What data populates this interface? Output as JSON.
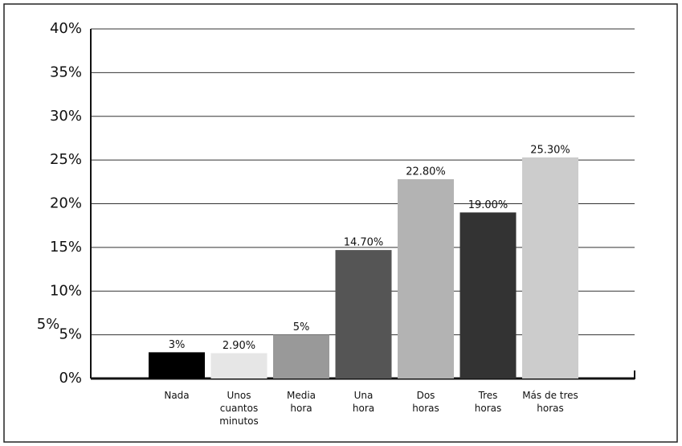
{
  "chart_data": {
    "type": "bar",
    "categories": [
      "Nada",
      "Unos\ncuantos\nminutos",
      "Media\nhora",
      "Una\nhora",
      "Dos\nhoras",
      "Tres\nhoras",
      "Más de tres\nhoras"
    ],
    "values": [
      3,
      2.9,
      5,
      14.7,
      22.8,
      19,
      25.3
    ],
    "value_labels": [
      "3%",
      "2.90%",
      "5%",
      "14.70%",
      "22.80%",
      "19.00%",
      "25.30%"
    ],
    "colors": [
      "#000000",
      "#e6e6e6",
      "#999999",
      "#555555",
      "#b3b3b3",
      "#333333",
      "#cccccc"
    ],
    "annotation": "5%",
    "ylim": [
      0,
      40
    ],
    "yticks": [
      {
        "value": 0,
        "label": "0%"
      },
      {
        "value": 5,
        "label": "5%"
      },
      {
        "value": 10,
        "label": "10%"
      },
      {
        "value": 15,
        "label": "15%"
      },
      {
        "value": 20,
        "label": "20%"
      },
      {
        "value": 25,
        "label": "25%"
      },
      {
        "value": 30,
        "label": "30%"
      },
      {
        "value": 35,
        "label": "35%"
      },
      {
        "value": 40,
        "label": "40%"
      }
    ],
    "grid": true
  }
}
